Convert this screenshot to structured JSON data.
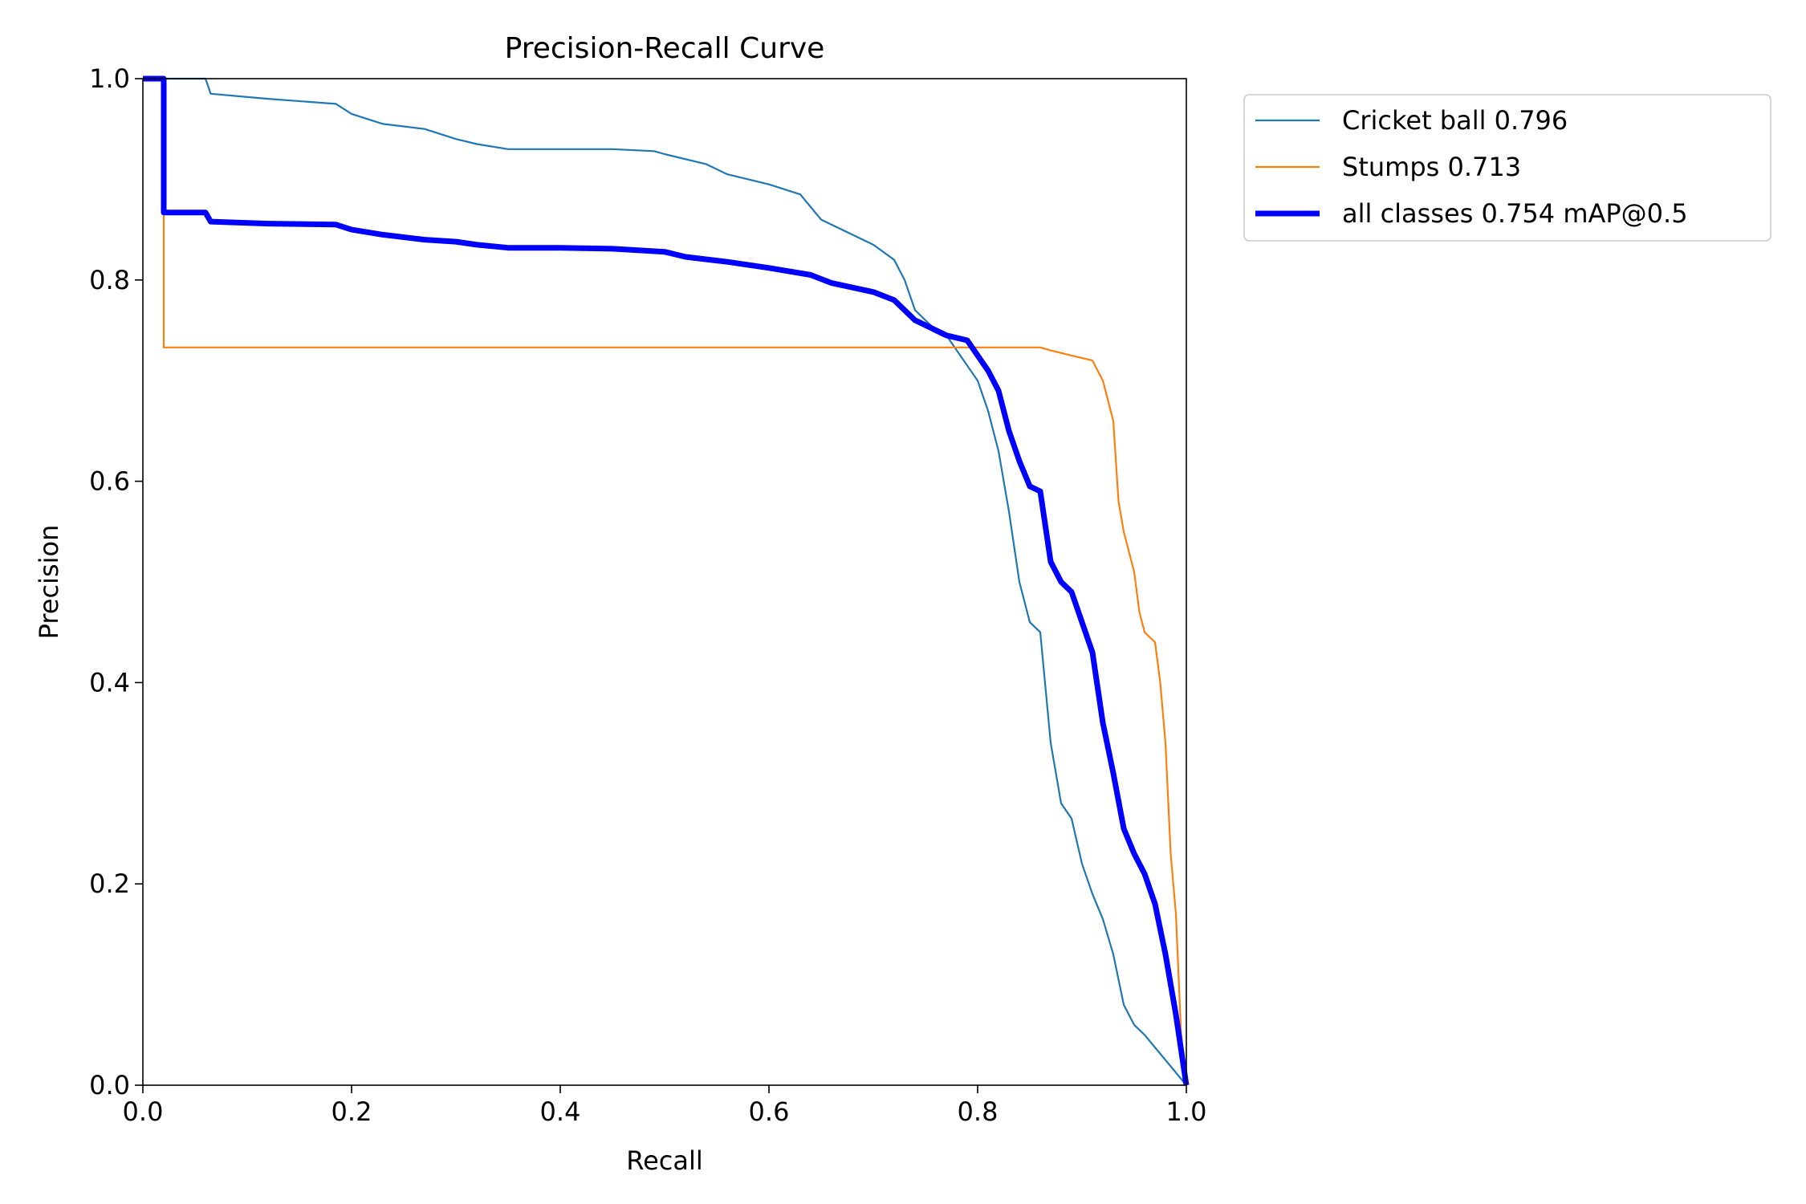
{
  "chart_data": {
    "type": "line",
    "title": "Precision-Recall Curve",
    "xlabel": "Recall",
    "ylabel": "Precision",
    "xlim": [
      0,
      1
    ],
    "ylim": [
      0,
      1
    ],
    "xticks": [
      "0.0",
      "0.2",
      "0.4",
      "0.6",
      "0.8",
      "1.0"
    ],
    "yticks": [
      "0.0",
      "0.2",
      "0.4",
      "0.6",
      "0.8",
      "1.0"
    ],
    "grid": false,
    "legend_position": "outside-top-right",
    "series": [
      {
        "name": "Cricket ball 0.796",
        "color": "#1f77b4",
        "x": [
          0.0,
          0.06,
          0.065,
          0.12,
          0.185,
          0.2,
          0.23,
          0.27,
          0.3,
          0.32,
          0.35,
          0.4,
          0.45,
          0.49,
          0.5,
          0.54,
          0.56,
          0.6,
          0.63,
          0.65,
          0.67,
          0.7,
          0.72,
          0.73,
          0.74,
          0.75,
          0.76,
          0.77,
          0.8,
          0.81,
          0.82,
          0.83,
          0.84,
          0.85,
          0.86,
          0.87,
          0.88,
          0.89,
          0.9,
          0.91,
          0.92,
          0.93,
          0.94,
          0.95,
          0.96,
          1.0
        ],
        "y": [
          1.0,
          1.0,
          0.985,
          0.98,
          0.975,
          0.965,
          0.955,
          0.95,
          0.94,
          0.935,
          0.93,
          0.93,
          0.93,
          0.928,
          0.925,
          0.915,
          0.905,
          0.895,
          0.885,
          0.86,
          0.85,
          0.835,
          0.82,
          0.8,
          0.77,
          0.76,
          0.75,
          0.745,
          0.7,
          0.67,
          0.63,
          0.57,
          0.5,
          0.46,
          0.45,
          0.34,
          0.28,
          0.265,
          0.22,
          0.19,
          0.165,
          0.13,
          0.08,
          0.06,
          0.05,
          0.0
        ]
      },
      {
        "name": "Stumps 0.713",
        "color": "#ff7f0e",
        "x": [
          0.0,
          0.02,
          0.02,
          0.3,
          0.5,
          0.7,
          0.86,
          0.87,
          0.89,
          0.91,
          0.92,
          0.93,
          0.935,
          0.94,
          0.95,
          0.955,
          0.96,
          0.97,
          0.975,
          0.98,
          0.985,
          0.99,
          0.995,
          1.0
        ],
        "y": [
          1.0,
          1.0,
          0.733,
          0.733,
          0.733,
          0.733,
          0.733,
          0.73,
          0.725,
          0.72,
          0.7,
          0.66,
          0.58,
          0.55,
          0.51,
          0.47,
          0.45,
          0.44,
          0.4,
          0.34,
          0.23,
          0.17,
          0.05,
          0.0
        ]
      },
      {
        "name": "all classes 0.754 mAP@0.5",
        "color": "#0000ff",
        "emphasis": true,
        "x": [
          0.0,
          0.02,
          0.02,
          0.06,
          0.065,
          0.12,
          0.185,
          0.2,
          0.23,
          0.27,
          0.3,
          0.32,
          0.35,
          0.4,
          0.45,
          0.5,
          0.52,
          0.56,
          0.6,
          0.64,
          0.66,
          0.7,
          0.72,
          0.74,
          0.75,
          0.77,
          0.79,
          0.8,
          0.81,
          0.82,
          0.83,
          0.84,
          0.85,
          0.86,
          0.87,
          0.88,
          0.89,
          0.9,
          0.91,
          0.92,
          0.93,
          0.94,
          0.95,
          0.96,
          0.97,
          0.98,
          0.99,
          1.0
        ],
        "y": [
          1.0,
          1.0,
          0.867,
          0.867,
          0.858,
          0.856,
          0.855,
          0.85,
          0.845,
          0.84,
          0.838,
          0.835,
          0.832,
          0.832,
          0.831,
          0.828,
          0.823,
          0.818,
          0.812,
          0.805,
          0.797,
          0.788,
          0.78,
          0.76,
          0.755,
          0.745,
          0.74,
          0.725,
          0.71,
          0.69,
          0.65,
          0.62,
          0.595,
          0.59,
          0.52,
          0.5,
          0.49,
          0.46,
          0.43,
          0.36,
          0.31,
          0.255,
          0.23,
          0.21,
          0.18,
          0.13,
          0.07,
          0.0
        ]
      }
    ]
  }
}
